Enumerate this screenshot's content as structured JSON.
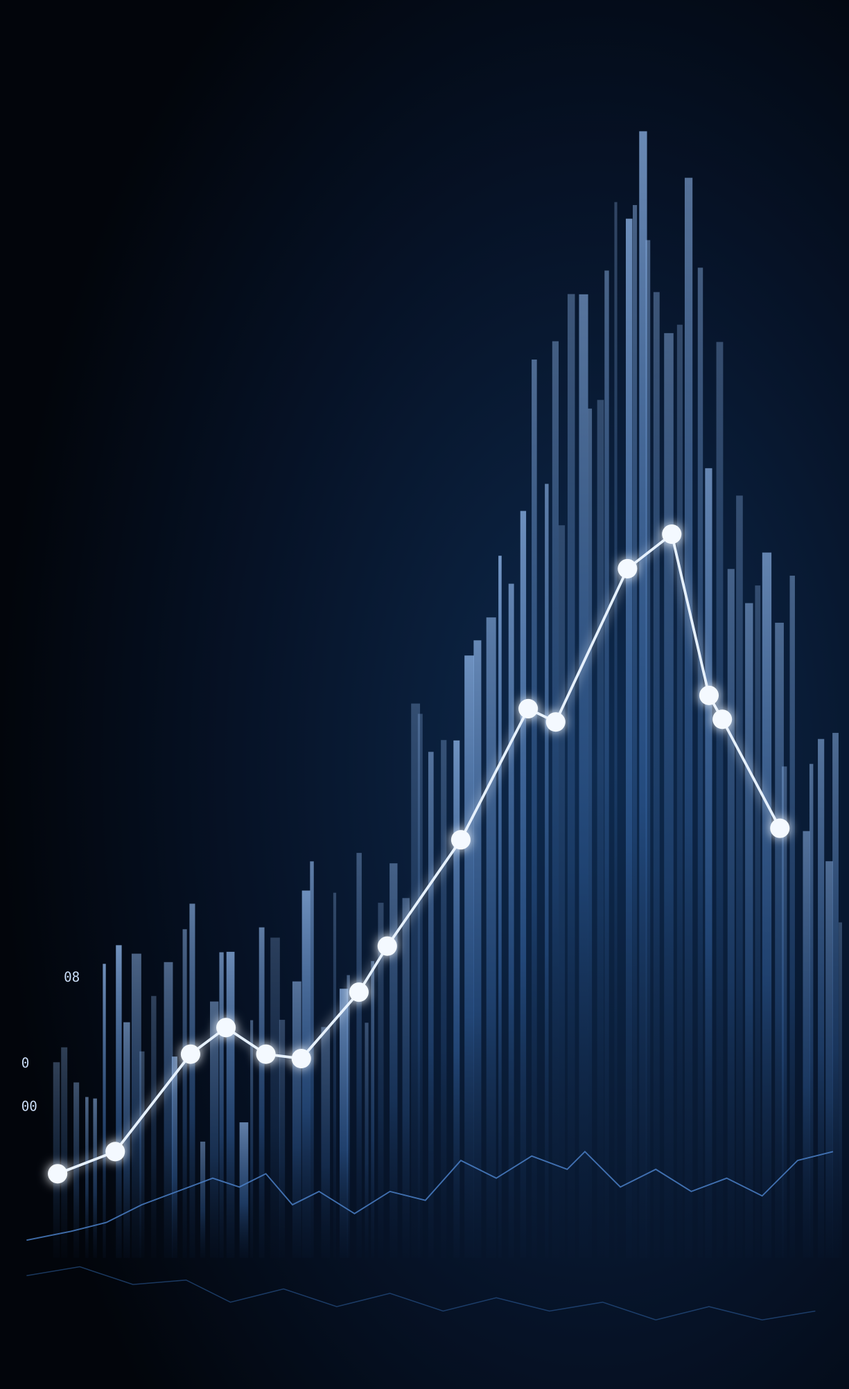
{
  "labels": [
    "08",
    "0",
    "00"
  ]
}
